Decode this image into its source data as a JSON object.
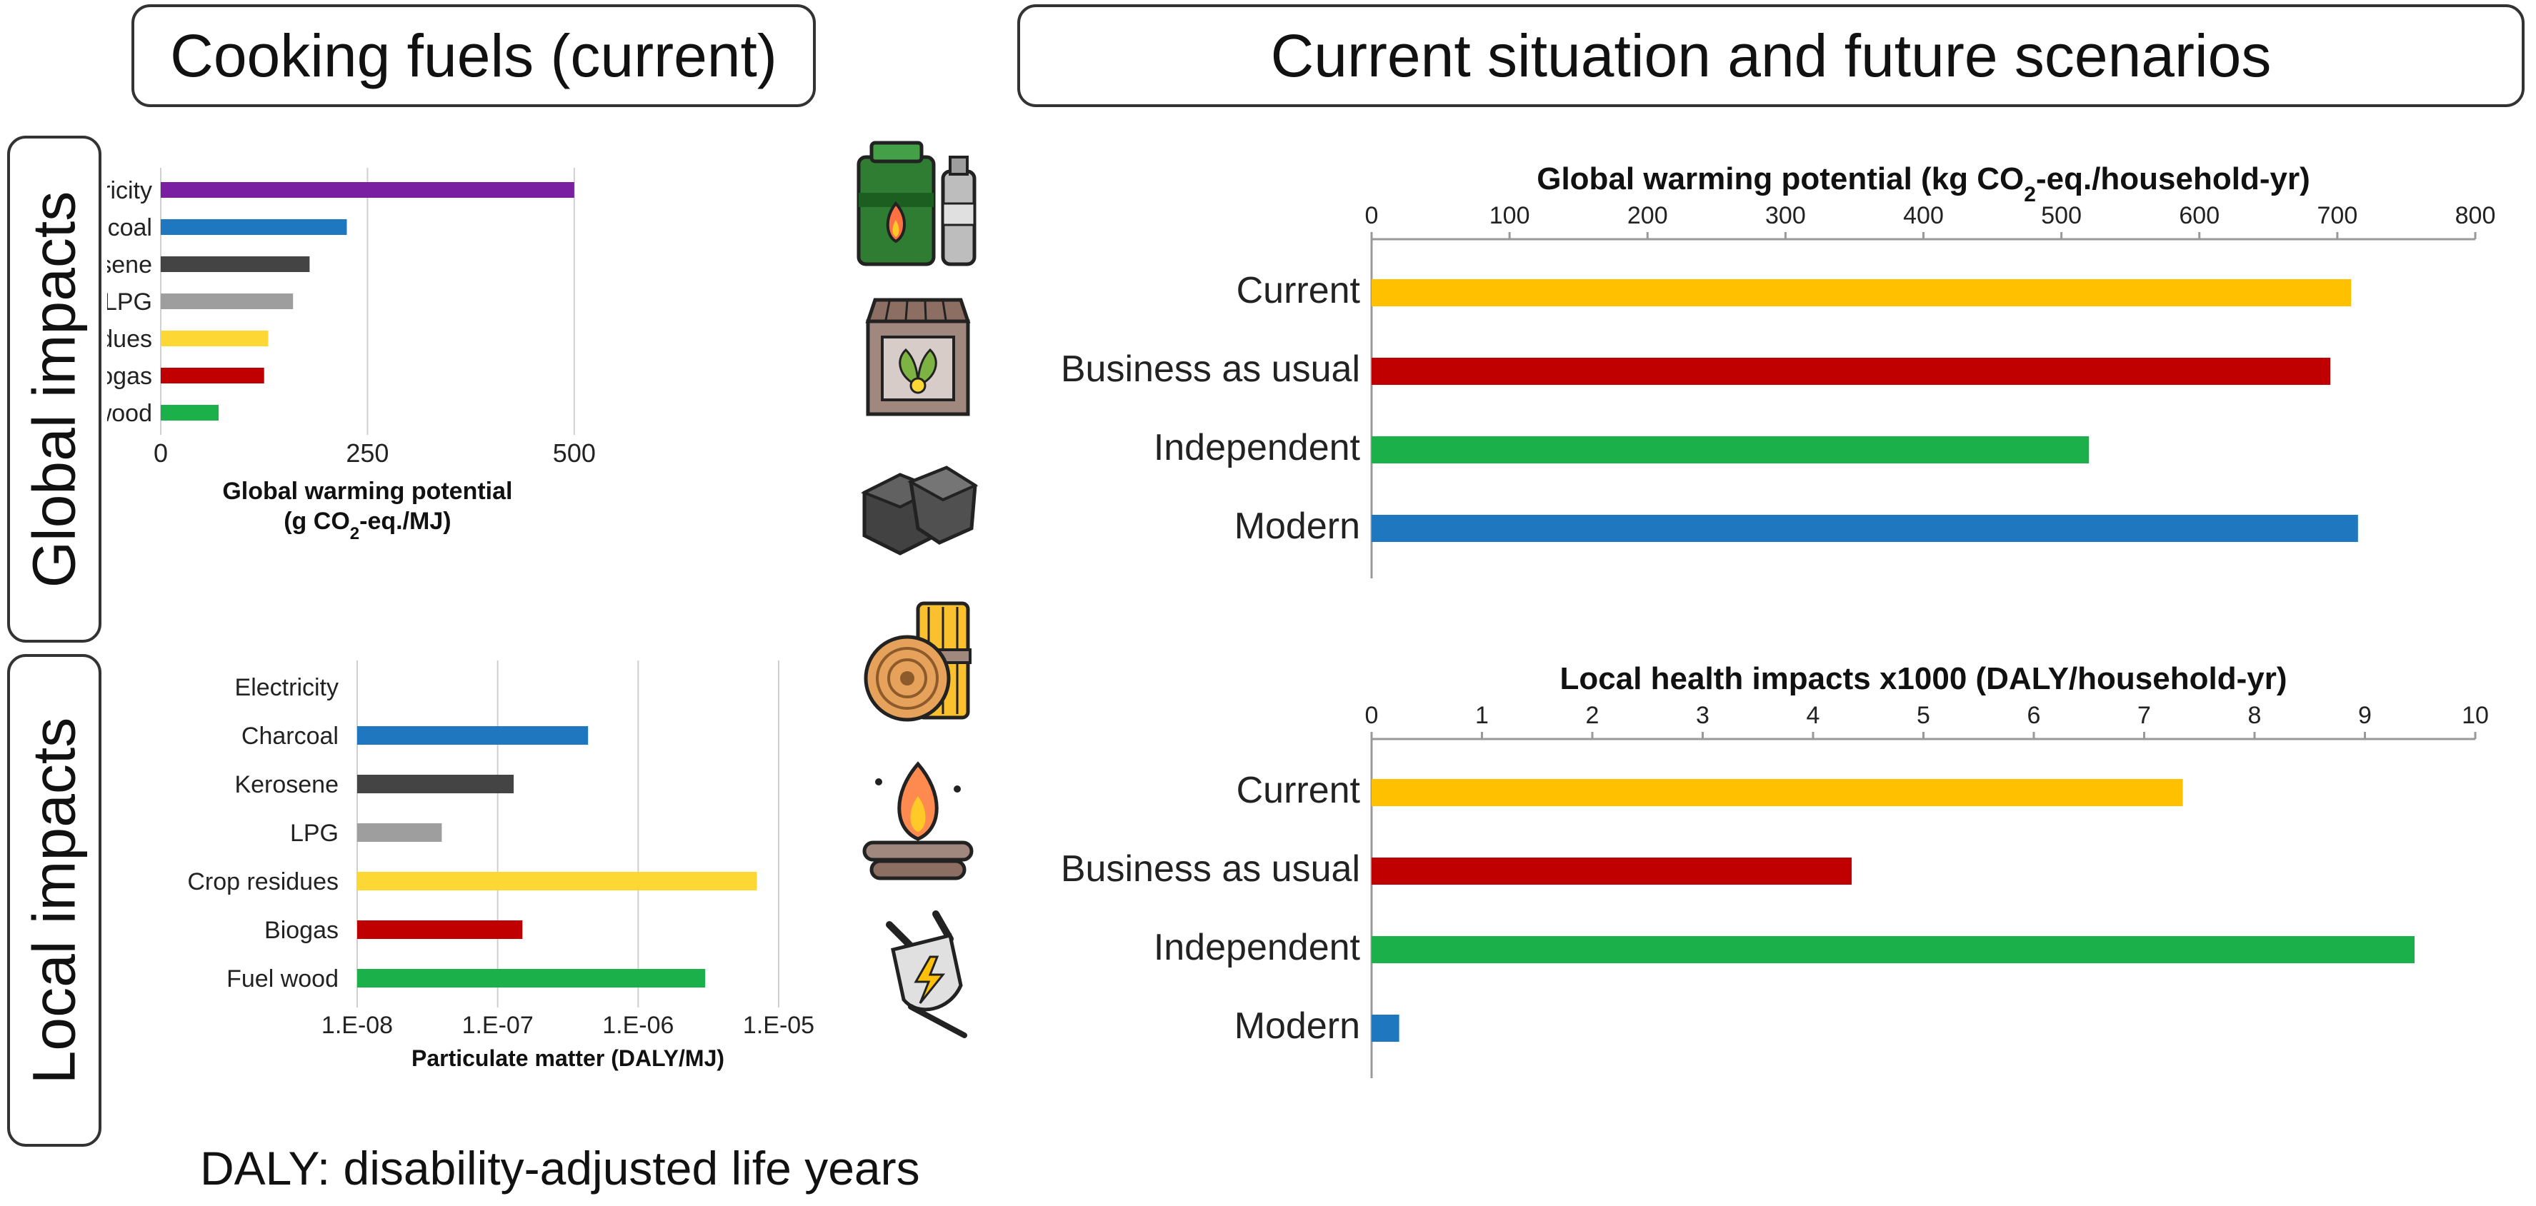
{
  "headers": {
    "left": "Cooking fuels (current)",
    "right": "Current situation and future scenarios"
  },
  "side_labels": {
    "global": "Global impacts",
    "local": "Local impacts"
  },
  "footnote": "DALY: disability-adjusted life years",
  "icons": [
    "lpg-cylinder-icon",
    "biogas-digester-icon",
    "charcoal-icon",
    "fuel-wood-icon",
    "crop-residue-fire-icon",
    "electric-plug-icon"
  ],
  "colors": {
    "Electricity": "#7b1fa2",
    "Charcoal": "#1f77c0",
    "Kerosene": "#444444",
    "LPG": "#9e9e9e",
    "Crop residues": "#fdd835",
    "Biogas": "#c00000",
    "Fuel wood": "#1bb04a",
    "Current": "#ffc000",
    "Business as usual": "#c00000",
    "Independent": "#1bb04a",
    "Modern": "#1f77c0"
  },
  "chart_data": [
    {
      "type": "bar",
      "orientation": "horizontal",
      "categories": [
        "Electricity",
        "Charcoal",
        "Kerosene",
        "LPG",
        "Crop residues",
        "Biogas",
        "Fuel wood"
      ],
      "values": [
        500,
        225,
        180,
        160,
        130,
        125,
        70
      ],
      "xlabel_line1": "Global warming potential",
      "xlabel_line2_pre": "(g CO",
      "xlabel_line2_sub": "2",
      "xlabel_line2_post": "-eq./MJ)",
      "xlim": [
        0,
        500
      ],
      "xticks": [
        0,
        250,
        500
      ],
      "grid": true
    },
    {
      "type": "bar",
      "orientation": "horizontal",
      "scale": "log",
      "categories": [
        "Electricity",
        "Charcoal",
        "Kerosene",
        "LPG",
        "Crop residues",
        "Biogas",
        "Fuel wood"
      ],
      "values": [
        null,
        4.4e-07,
        1.3e-07,
        4e-08,
        7e-06,
        1.5e-07,
        3e-06
      ],
      "xlabel": "Particulate matter (DALY/MJ)",
      "xlim": [
        1e-08,
        1e-05
      ],
      "xtick_labels": [
        "1.E-08",
        "1.E-07",
        "1.E-06",
        "1.E-05"
      ],
      "grid": true
    },
    {
      "type": "bar",
      "orientation": "horizontal",
      "title_pre": "Global warming potential (kg CO",
      "title_sub": "2",
      "title_post": "-eq./household-yr)",
      "categories": [
        "Current",
        "Business as usual",
        "Independent",
        "Modern"
      ],
      "values": [
        710,
        695,
        520,
        715
      ],
      "xlim": [
        0,
        800
      ],
      "xticks": [
        0,
        100,
        200,
        300,
        400,
        500,
        600,
        700,
        800
      ],
      "xaxis_position": "top"
    },
    {
      "type": "bar",
      "orientation": "horizontal",
      "title": "Local health impacts x1000 (DALY/household-yr)",
      "categories": [
        "Current",
        "Business as usual",
        "Independent",
        "Modern"
      ],
      "values": [
        7.35,
        4.35,
        9.45,
        0.25
      ],
      "xlim": [
        0,
        10
      ],
      "xticks": [
        0,
        1,
        2,
        3,
        4,
        5,
        6,
        7,
        8,
        9,
        10
      ],
      "xaxis_position": "top"
    }
  ]
}
